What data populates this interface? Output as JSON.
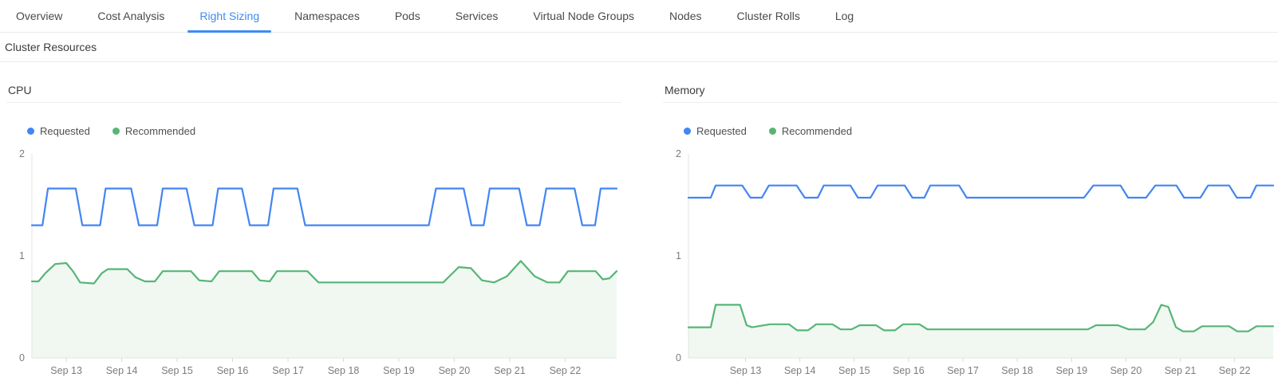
{
  "tabs": {
    "items": [
      {
        "label": "Overview",
        "active": false
      },
      {
        "label": "Cost Analysis",
        "active": false
      },
      {
        "label": "Right Sizing",
        "active": true
      },
      {
        "label": "Namespaces",
        "active": false
      },
      {
        "label": "Pods",
        "active": false
      },
      {
        "label": "Services",
        "active": false
      },
      {
        "label": "Virtual Node Groups",
        "active": false
      },
      {
        "label": "Nodes",
        "active": false
      },
      {
        "label": "Cluster Rolls",
        "active": false
      },
      {
        "label": "Log",
        "active": false
      }
    ]
  },
  "section": {
    "title": "Cluster Resources"
  },
  "colors": {
    "requested_line": "#4285f4",
    "recommended_line": "#56b576",
    "recommended_fill": "#f1f8f2",
    "active_tab": "#3d8bf3",
    "axis_line": "#e3e3e3",
    "tick_label": "#7c7c7c"
  },
  "chart_data": [
    {
      "type": "line",
      "title": "CPU",
      "ylim": [
        0,
        2
      ],
      "y_ticks": [
        0,
        1,
        2
      ],
      "x_domain": [
        12.38,
        22.93
      ],
      "grid": false,
      "legend_position": "top-left",
      "x_ticks": [
        {
          "day": 13,
          "label": "Sep 13"
        },
        {
          "day": 14,
          "label": "Sep 14"
        },
        {
          "day": 15,
          "label": "Sep 15"
        },
        {
          "day": 16,
          "label": "Sep 16"
        },
        {
          "day": 17,
          "label": "Sep 17"
        },
        {
          "day": 18,
          "label": "Sep 18"
        },
        {
          "day": 19,
          "label": "Sep 19"
        },
        {
          "day": 20,
          "label": "Sep 20"
        },
        {
          "day": 21,
          "label": "Sep 21"
        },
        {
          "day": 22,
          "label": "Sep 22"
        }
      ],
      "series": [
        {
          "name": "Requested",
          "color": "#4285f4",
          "fill": false,
          "points": [
            [
              12.38,
              1.3
            ],
            [
              12.57,
              1.3
            ],
            [
              12.67,
              1.66
            ],
            [
              13.17,
              1.66
            ],
            [
              13.29,
              1.3
            ],
            [
              13.61,
              1.3
            ],
            [
              13.71,
              1.66
            ],
            [
              14.17,
              1.66
            ],
            [
              14.31,
              1.3
            ],
            [
              14.64,
              1.3
            ],
            [
              14.74,
              1.66
            ],
            [
              15.17,
              1.66
            ],
            [
              15.31,
              1.3
            ],
            [
              15.64,
              1.3
            ],
            [
              15.74,
              1.66
            ],
            [
              16.17,
              1.66
            ],
            [
              16.31,
              1.3
            ],
            [
              16.64,
              1.3
            ],
            [
              16.74,
              1.66
            ],
            [
              17.17,
              1.66
            ],
            [
              17.31,
              1.3
            ],
            [
              19.54,
              1.3
            ],
            [
              19.67,
              1.66
            ],
            [
              20.17,
              1.66
            ],
            [
              20.31,
              1.3
            ],
            [
              20.53,
              1.3
            ],
            [
              20.64,
              1.66
            ],
            [
              21.17,
              1.66
            ],
            [
              21.31,
              1.3
            ],
            [
              21.54,
              1.3
            ],
            [
              21.66,
              1.66
            ],
            [
              22.17,
              1.66
            ],
            [
              22.31,
              1.3
            ],
            [
              22.54,
              1.3
            ],
            [
              22.64,
              1.66
            ],
            [
              22.93,
              1.66
            ]
          ]
        },
        {
          "name": "Recommended",
          "color": "#56b576",
          "fill": true,
          "fill_color": "#f1f8f2",
          "points": [
            [
              12.38,
              0.75
            ],
            [
              12.5,
              0.75
            ],
            [
              12.62,
              0.83
            ],
            [
              12.8,
              0.92
            ],
            [
              13.0,
              0.93
            ],
            [
              13.12,
              0.85
            ],
            [
              13.25,
              0.74
            ],
            [
              13.5,
              0.73
            ],
            [
              13.64,
              0.83
            ],
            [
              13.75,
              0.87
            ],
            [
              14.1,
              0.87
            ],
            [
              14.25,
              0.79
            ],
            [
              14.42,
              0.75
            ],
            [
              14.6,
              0.75
            ],
            [
              14.74,
              0.85
            ],
            [
              15.25,
              0.85
            ],
            [
              15.4,
              0.76
            ],
            [
              15.62,
              0.75
            ],
            [
              15.76,
              0.85
            ],
            [
              16.35,
              0.85
            ],
            [
              16.49,
              0.76
            ],
            [
              16.67,
              0.75
            ],
            [
              16.8,
              0.85
            ],
            [
              17.35,
              0.85
            ],
            [
              17.55,
              0.74
            ],
            [
              19.8,
              0.74
            ],
            [
              19.95,
              0.82
            ],
            [
              20.08,
              0.89
            ],
            [
              20.3,
              0.88
            ],
            [
              20.5,
              0.76
            ],
            [
              20.72,
              0.74
            ],
            [
              20.95,
              0.8
            ],
            [
              21.2,
              0.95
            ],
            [
              21.45,
              0.8
            ],
            [
              21.68,
              0.74
            ],
            [
              21.9,
              0.74
            ],
            [
              22.05,
              0.85
            ],
            [
              22.55,
              0.85
            ],
            [
              22.68,
              0.77
            ],
            [
              22.8,
              0.78
            ],
            [
              22.93,
              0.85
            ]
          ]
        }
      ]
    },
    {
      "type": "line",
      "title": "Memory",
      "ylim": [
        0,
        2
      ],
      "y_ticks": [
        0,
        1,
        2
      ],
      "x_domain": [
        11.95,
        22.71
      ],
      "grid": false,
      "legend_position": "top-left",
      "x_ticks": [
        {
          "day": 13,
          "label": "Sep 13"
        },
        {
          "day": 14,
          "label": "Sep 14"
        },
        {
          "day": 15,
          "label": "Sep 15"
        },
        {
          "day": 16,
          "label": "Sep 16"
        },
        {
          "day": 17,
          "label": "Sep 17"
        },
        {
          "day": 18,
          "label": "Sep 18"
        },
        {
          "day": 19,
          "label": "Sep 19"
        },
        {
          "day": 20,
          "label": "Sep 20"
        },
        {
          "day": 21,
          "label": "Sep 21"
        },
        {
          "day": 22,
          "label": "Sep 22"
        }
      ],
      "series": [
        {
          "name": "Requested",
          "color": "#4285f4",
          "fill": false,
          "points": [
            [
              11.95,
              1.57
            ],
            [
              12.36,
              1.57
            ],
            [
              12.45,
              1.69
            ],
            [
              12.94,
              1.69
            ],
            [
              13.09,
              1.57
            ],
            [
              13.3,
              1.57
            ],
            [
              13.43,
              1.69
            ],
            [
              13.94,
              1.69
            ],
            [
              14.09,
              1.57
            ],
            [
              14.33,
              1.57
            ],
            [
              14.44,
              1.69
            ],
            [
              14.93,
              1.69
            ],
            [
              15.07,
              1.57
            ],
            [
              15.3,
              1.57
            ],
            [
              15.43,
              1.69
            ],
            [
              15.93,
              1.69
            ],
            [
              16.07,
              1.57
            ],
            [
              16.29,
              1.57
            ],
            [
              16.4,
              1.69
            ],
            [
              16.93,
              1.69
            ],
            [
              17.07,
              1.57
            ],
            [
              19.23,
              1.57
            ],
            [
              19.4,
              1.69
            ],
            [
              19.9,
              1.69
            ],
            [
              20.04,
              1.57
            ],
            [
              20.37,
              1.57
            ],
            [
              20.54,
              1.69
            ],
            [
              20.93,
              1.69
            ],
            [
              21.07,
              1.57
            ],
            [
              21.37,
              1.57
            ],
            [
              21.51,
              1.69
            ],
            [
              21.9,
              1.69
            ],
            [
              22.04,
              1.57
            ],
            [
              22.29,
              1.57
            ],
            [
              22.4,
              1.69
            ],
            [
              22.71,
              1.69
            ]
          ]
        },
        {
          "name": "Recommended",
          "color": "#56b576",
          "fill": true,
          "fill_color": "#f1f8f2",
          "points": [
            [
              11.95,
              0.3
            ],
            [
              12.36,
              0.3
            ],
            [
              12.45,
              0.52
            ],
            [
              12.9,
              0.52
            ],
            [
              13.02,
              0.32
            ],
            [
              13.12,
              0.3
            ],
            [
              13.45,
              0.33
            ],
            [
              13.8,
              0.33
            ],
            [
              13.95,
              0.27
            ],
            [
              14.15,
              0.27
            ],
            [
              14.3,
              0.33
            ],
            [
              14.6,
              0.33
            ],
            [
              14.75,
              0.28
            ],
            [
              14.95,
              0.28
            ],
            [
              15.1,
              0.32
            ],
            [
              15.4,
              0.32
            ],
            [
              15.55,
              0.27
            ],
            [
              15.75,
              0.27
            ],
            [
              15.9,
              0.33
            ],
            [
              16.2,
              0.33
            ],
            [
              16.35,
              0.28
            ],
            [
              19.3,
              0.28
            ],
            [
              19.45,
              0.32
            ],
            [
              19.85,
              0.32
            ],
            [
              20.05,
              0.28
            ],
            [
              20.35,
              0.28
            ],
            [
              20.5,
              0.35
            ],
            [
              20.65,
              0.52
            ],
            [
              20.78,
              0.5
            ],
            [
              20.92,
              0.3
            ],
            [
              21.05,
              0.26
            ],
            [
              21.25,
              0.26
            ],
            [
              21.4,
              0.31
            ],
            [
              21.9,
              0.31
            ],
            [
              22.05,
              0.26
            ],
            [
              22.25,
              0.26
            ],
            [
              22.4,
              0.31
            ],
            [
              22.71,
              0.31
            ]
          ]
        }
      ]
    }
  ]
}
